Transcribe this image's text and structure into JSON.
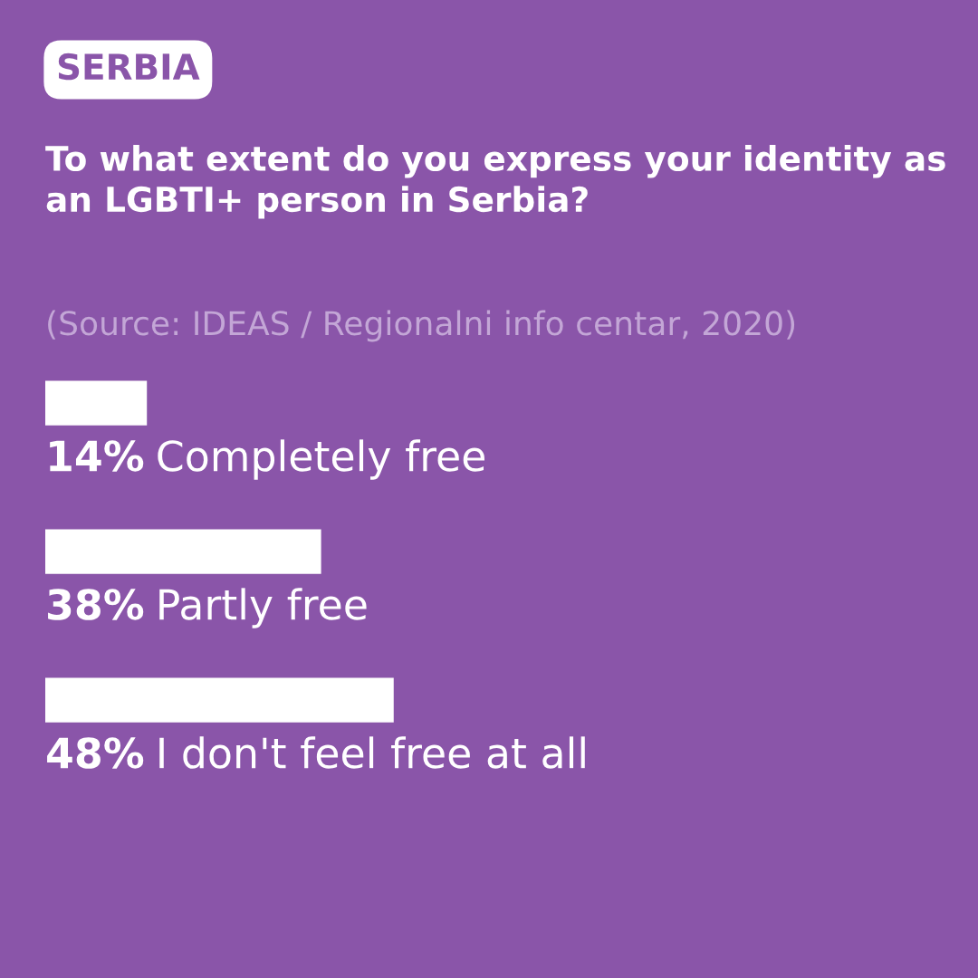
{
  "chart_data": {
    "type": "bar",
    "orientation": "horizontal",
    "title": "To what extent do you express your identity as an LGBTI+ person in Serbia?",
    "annotations": [
      "SERBIA",
      "(Source: IDEAS / Regionalni info centar, 2020)"
    ],
    "categories": [
      "Completely free",
      "Partly free",
      "I don't feel free at all"
    ],
    "values": [
      14,
      38,
      48
    ],
    "value_labels": [
      "14%",
      "38%",
      "48%"
    ],
    "color": "#ffffff",
    "legend": false
  }
}
